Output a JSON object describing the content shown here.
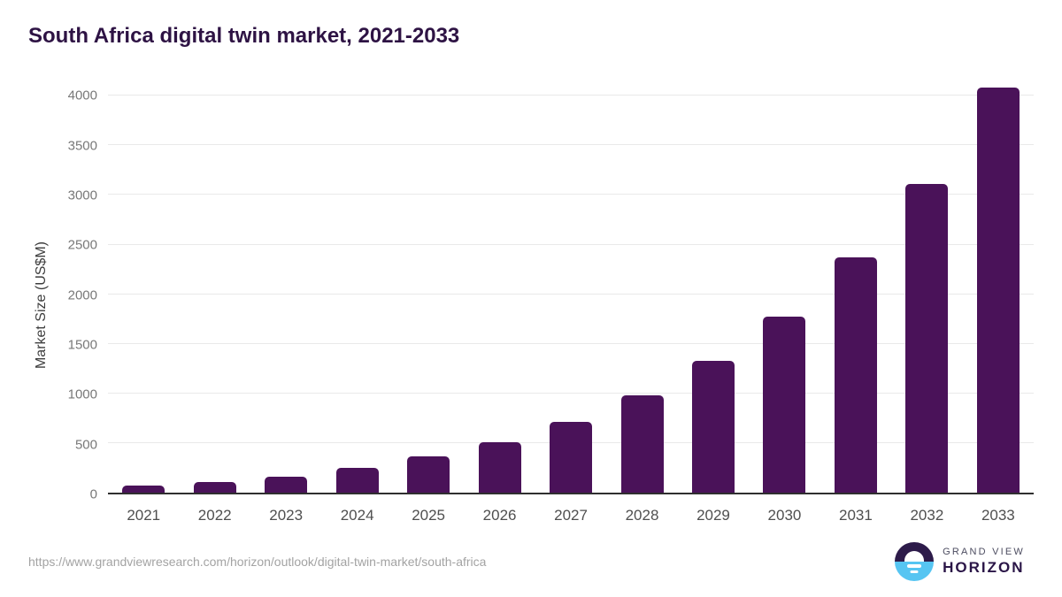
{
  "title": "South Africa digital twin market, 2021-2033",
  "chart_data": {
    "type": "bar",
    "title": "South Africa digital twin market, 2021-2033",
    "categories": [
      "2021",
      "2022",
      "2023",
      "2024",
      "2025",
      "2026",
      "2027",
      "2028",
      "2029",
      "2030",
      "2031",
      "2032",
      "2033"
    ],
    "values": [
      70,
      105,
      160,
      250,
      365,
      510,
      710,
      985,
      1325,
      1775,
      2370,
      3110,
      4080
    ],
    "xlabel": "",
    "ylabel": "Market Size (US$M)",
    "yticks": [
      0,
      500,
      1000,
      1500,
      2000,
      2500,
      3000,
      3500,
      4000
    ],
    "ylim": [
      0,
      4100
    ],
    "grid": true,
    "legend": false,
    "bar_color": "#4a1259"
  },
  "footer": {
    "source_url": "https://www.grandviewresearch.com/horizon/outlook/digital-twin-market/south-africa",
    "logo": {
      "line1": "GRAND VIEW",
      "line2": "HORIZON",
      "icon": "sunrise-horizon-icon",
      "icon_top_color": "#2d1b4a",
      "icon_bottom_color": "#56c5f2"
    }
  },
  "colors": {
    "background": "#ffffff",
    "title_text": "#2e1344",
    "bar": "#4a1259",
    "gridline": "#e9e9e9",
    "axis_line": "#2f2f2f",
    "y_tick_text": "#787878",
    "x_tick_text": "#4f4f4f",
    "url_text": "#a3a3a3"
  }
}
